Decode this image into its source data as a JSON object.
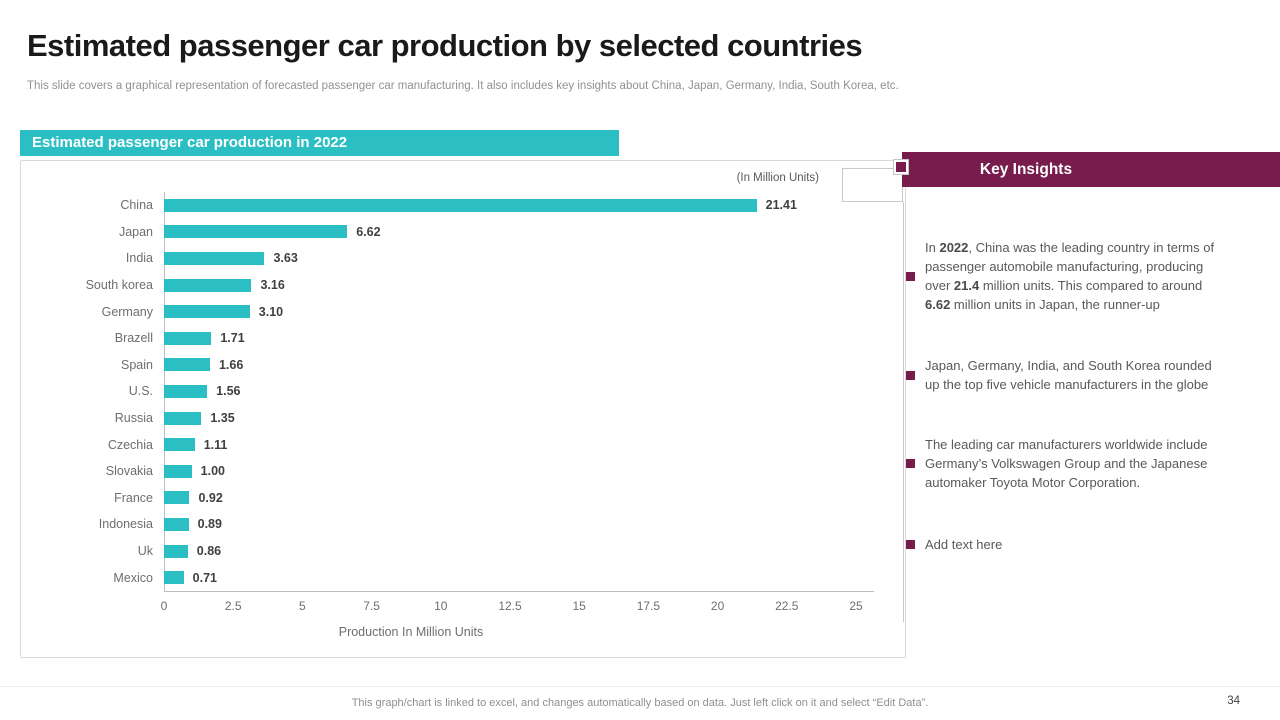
{
  "slide": {
    "title": "Estimated passenger car production by selected countries",
    "subtitle": "This slide covers a graphical representation of forecasted passenger car manufacturing. It also includes key insights about China, Japan, Germany, India,  South Korea, etc.",
    "footer_note": "This graph/chart is linked to excel,  and changes automatically based on data. Just left click on it and select “Edit Data”.",
    "page_number": "34"
  },
  "chart_section": {
    "banner_title": "Estimated passenger car production in 2022",
    "units_note": "(In Million Units)"
  },
  "chart_data": {
    "type": "bar",
    "orientation": "horizontal",
    "title": "Estimated passenger car production in 2022",
    "categories": [
      "China",
      "Japan",
      "India",
      "South korea",
      "Germany",
      "Brazell",
      "Spain",
      "U.S.",
      "Russia",
      "Czechia",
      "Slovakia",
      "France",
      "Indonesia",
      "Uk",
      "Mexico"
    ],
    "values": [
      21.41,
      6.62,
      3.63,
      3.16,
      3.1,
      1.71,
      1.66,
      1.56,
      1.35,
      1.11,
      1.0,
      0.92,
      0.89,
      0.86,
      0.71
    ],
    "value_labels": [
      "21.41",
      "6.62",
      "3.63",
      "3.16",
      "3.10",
      "1.71",
      "1.66",
      "1.56",
      "1.35",
      "1.11",
      "1.00",
      "0.92",
      "0.89",
      "0.86",
      "0.71"
    ],
    "xlabel": "Production In Million Units",
    "ylabel": "",
    "xlim": [
      0,
      25
    ],
    "x_ticks": [
      "0",
      "2.5",
      "5",
      "7.5",
      "10",
      "12.5",
      "15",
      "17.5",
      "20",
      "22.5",
      "25"
    ],
    "grid": false,
    "legend": false,
    "bar_color": "#2BBFC3"
  },
  "insights": {
    "header": "Key Insights",
    "items": [
      {
        "placeholder": false,
        "segments": [
          {
            "t": "In "
          },
          {
            "t": "2022",
            "b": true
          },
          {
            "t": ", China was the leading country in terms of passenger automobile manufacturing,  producing over "
          },
          {
            "t": "21.4",
            "b": true
          },
          {
            "t": " million units. This compared to around "
          },
          {
            "t": "6.62",
            "b": true
          },
          {
            "t": " million units in Japan, the runner-up"
          }
        ]
      },
      {
        "placeholder": false,
        "segments": [
          {
            "t": "Japan, Germany, India, and South Korea rounded up the top five vehicle manufacturers in the globe"
          }
        ]
      },
      {
        "placeholder": false,
        "segments": [
          {
            "t": "The leading car manufacturers worldwide include Germany’s Volkswagen Group and the Japanese automaker Toyota Motor Corporation."
          }
        ]
      },
      {
        "placeholder": true,
        "segments": [
          {
            "t": "Add text here"
          }
        ]
      }
    ]
  },
  "colors": {
    "accent_teal": "#2BBFC3",
    "accent_maroon": "#771C4C",
    "title_text": "#1A1A1A",
    "body_gray": "#595959",
    "axis_gray": "#6E6E6E"
  }
}
